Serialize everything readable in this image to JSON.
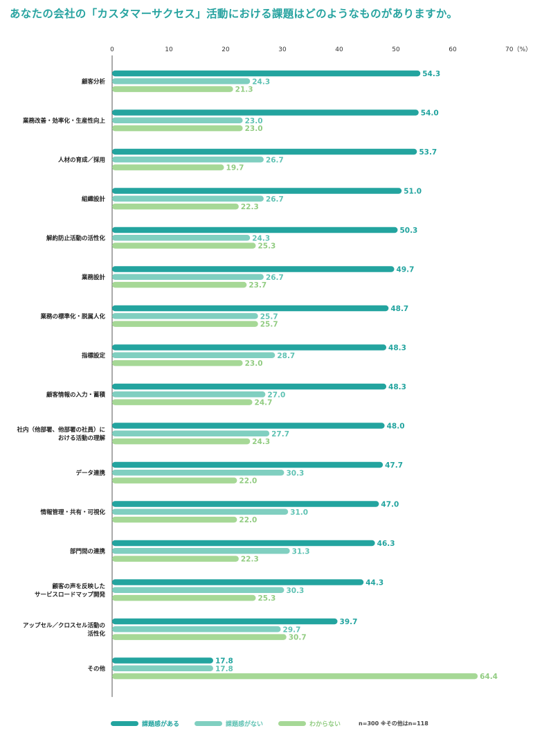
{
  "title": "あなたの会社の「カスタマーサクセス」活動における課題はどのようなものがありますか。",
  "note": "n=300 ※その他はn=118",
  "colors": {
    "series1": "#23a49f",
    "series2": "#80cfc0",
    "series3": "#a6d896",
    "text1": "#23a49f",
    "text2": "#5fc2b3",
    "text3": "#92cc82"
  },
  "chart_data": {
    "type": "bar",
    "orientation": "horizontal",
    "xlim": [
      0,
      70
    ],
    "xticks": [
      "0",
      "10",
      "20",
      "30",
      "40",
      "50",
      "60",
      "70（%）"
    ],
    "categories": [
      [
        "顧客分析"
      ],
      [
        "業務改善・効率化・生産性向上"
      ],
      [
        "人材の育成／採用"
      ],
      [
        "組織設計"
      ],
      [
        "解約防止活動の活性化"
      ],
      [
        "業務設計"
      ],
      [
        "業務の標準化・脱属人化"
      ],
      [
        "指標設定"
      ],
      [
        "顧客情報の入力・蓄積"
      ],
      [
        "社内（他部署、他部署の社員）に",
        "おける活動の理解"
      ],
      [
        "データ連携"
      ],
      [
        "情報管理・共有・可視化"
      ],
      [
        "部門間の連携"
      ],
      [
        "顧客の声を反映した",
        "サービスロードマップ開発"
      ],
      [
        "アップセル／クロスセル活動の",
        "活性化"
      ],
      [
        "その他"
      ]
    ],
    "series": [
      {
        "name": "課題感がある",
        "values": [
          54.3,
          54.0,
          53.7,
          51.0,
          50.3,
          49.7,
          48.7,
          48.3,
          48.3,
          48.0,
          47.7,
          47.0,
          46.3,
          44.3,
          39.7,
          17.8
        ]
      },
      {
        "name": "課題感がない",
        "values": [
          24.3,
          23.0,
          26.7,
          26.7,
          24.3,
          26.7,
          25.7,
          28.7,
          27.0,
          27.7,
          30.3,
          31.0,
          31.3,
          30.3,
          29.7,
          17.8
        ]
      },
      {
        "name": "わからない",
        "values": [
          21.3,
          23.0,
          19.7,
          22.3,
          25.3,
          23.7,
          25.7,
          23.0,
          24.7,
          24.3,
          22.0,
          22.0,
          22.3,
          25.3,
          30.7,
          64.4
        ]
      }
    ]
  }
}
